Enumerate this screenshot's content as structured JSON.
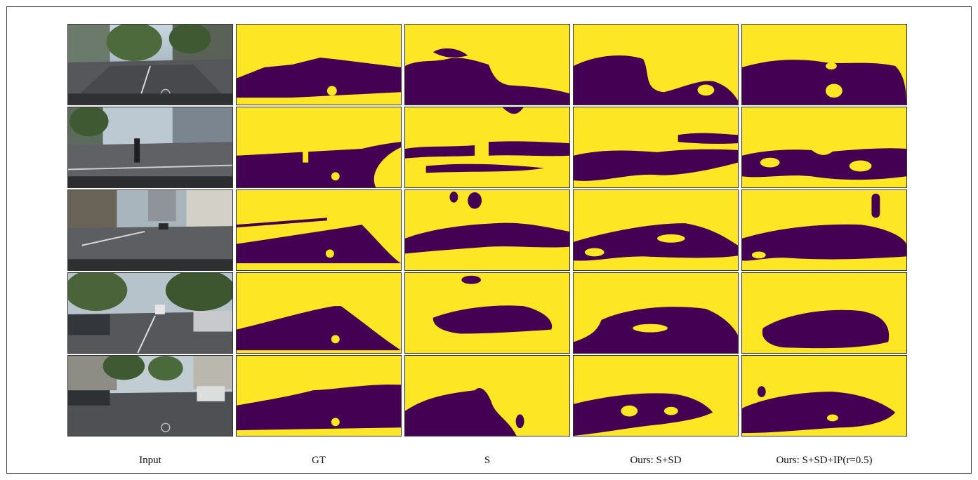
{
  "columns": [
    {
      "key": "input",
      "label": "Input"
    },
    {
      "key": "gt",
      "label": "GT"
    },
    {
      "key": "s",
      "label": "S"
    },
    {
      "key": "ours_s_sd",
      "label": "Ours: S+SD"
    },
    {
      "key": "ours_s_sd_ip",
      "label": "Ours: S+SD+IP(r=0.5)"
    }
  ],
  "rows": 5,
  "colors": {
    "mask_background": "#fde725",
    "mask_foreground": "#440154",
    "mask_edge": "#21918c"
  },
  "images": {
    "input": "street-scene-photo",
    "masks": "segmentation-mask"
  }
}
